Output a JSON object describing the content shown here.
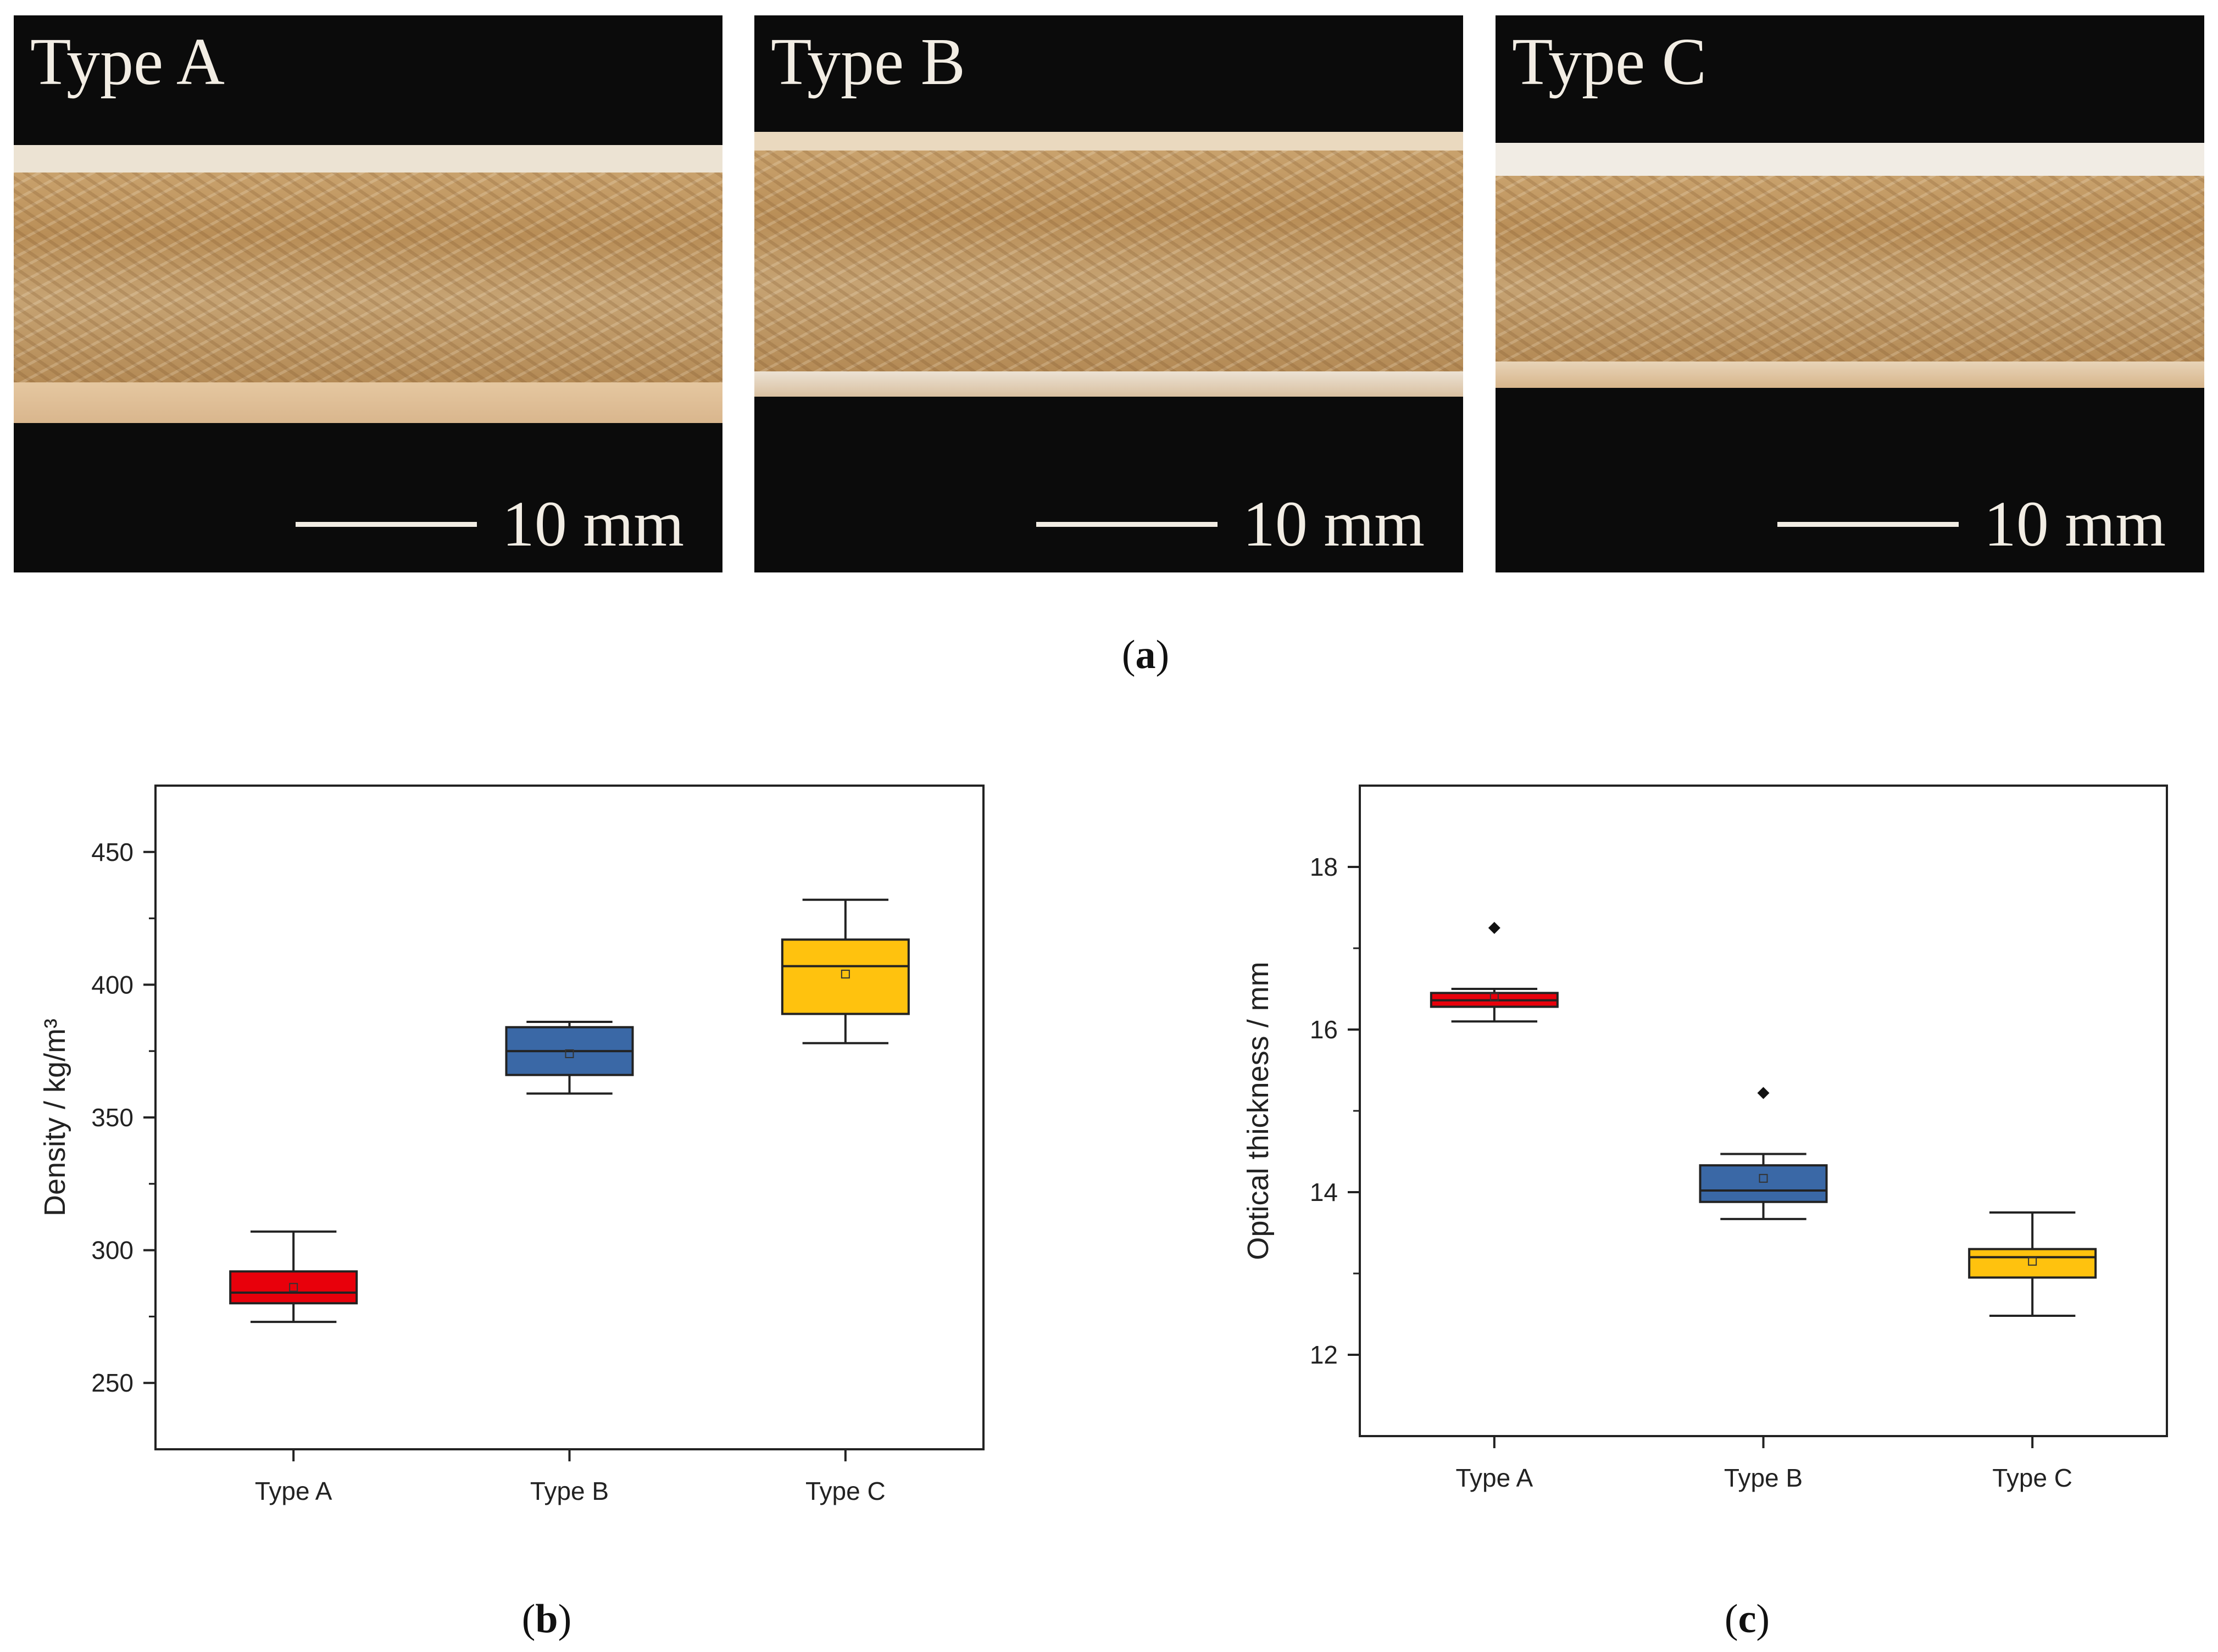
{
  "panel_a": {
    "photos": [
      {
        "label": "Type A",
        "scale": "10 mm"
      },
      {
        "label": "Type B",
        "scale": "10 mm"
      },
      {
        "label": "Type C",
        "scale": "10 mm"
      }
    ],
    "caption": {
      "open": "(",
      "letter": "a",
      "close": ")"
    }
  },
  "captions": {
    "b": {
      "open": "(",
      "letter": "b",
      "close": ")"
    },
    "c": {
      "open": "(",
      "letter": "c",
      "close": ")"
    }
  },
  "colors": {
    "type_a": "#e8000b",
    "type_b": "#3a68a6",
    "type_c": "#ffc20e"
  },
  "chart_data": [
    {
      "type": "box",
      "panel": "b",
      "ylabel": "Density   /  kg/m³",
      "ylim": [
        225,
        475
      ],
      "yticks": [
        250,
        300,
        350,
        400,
        450
      ],
      "categories": [
        "Type A",
        "Type B",
        "Type C"
      ],
      "boxes": [
        {
          "category": "Type A",
          "whisker_low": 273,
          "q1": 280,
          "median": 284,
          "q3": 292,
          "whisker_high": 307,
          "mean": 286,
          "outliers": []
        },
        {
          "category": "Type B",
          "whisker_low": 359,
          "q1": 366,
          "median": 375,
          "q3": 384,
          "whisker_high": 386,
          "mean": 374,
          "outliers": []
        },
        {
          "category": "Type C",
          "whisker_low": 378,
          "q1": 389,
          "median": 407,
          "q3": 417,
          "whisker_high": 432,
          "mean": 404,
          "outliers": []
        }
      ]
    },
    {
      "type": "box",
      "panel": "c",
      "ylabel": "Optical thickness   /  mm",
      "ylim": [
        11,
        19
      ],
      "yticks": [
        12,
        14,
        16,
        18
      ],
      "categories": [
        "Type A",
        "Type B",
        "Type C"
      ],
      "boxes": [
        {
          "category": "Type A",
          "whisker_low": 16.1,
          "q1": 16.28,
          "median": 16.36,
          "q3": 16.45,
          "whisker_high": 16.5,
          "mean": 16.4,
          "outliers": [
            17.25
          ]
        },
        {
          "category": "Type B",
          "whisker_low": 13.67,
          "q1": 13.88,
          "median": 14.02,
          "q3": 14.33,
          "whisker_high": 14.47,
          "mean": 14.17,
          "outliers": [
            15.22
          ]
        },
        {
          "category": "Type C",
          "whisker_low": 12.48,
          "q1": 12.95,
          "median": 13.2,
          "q3": 13.3,
          "whisker_high": 13.75,
          "mean": 13.15,
          "outliers": []
        }
      ]
    }
  ]
}
